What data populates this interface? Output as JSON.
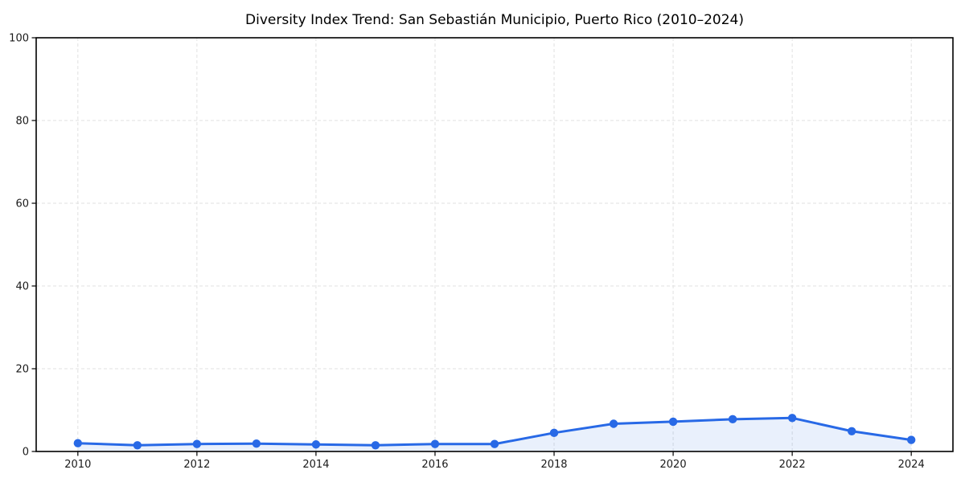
{
  "page": {
    "background": "#ffffff"
  },
  "chart_data": {
    "type": "line",
    "title": "Diversity Index Trend: San Sebastián Municipio, Puerto Rico (2010–2024)",
    "x": [
      2010,
      2011,
      2012,
      2013,
      2014,
      2015,
      2016,
      2017,
      2018,
      2019,
      2020,
      2021,
      2022,
      2023,
      2024
    ],
    "series": [
      {
        "name": "Diversity Index",
        "values": [
          2.0,
          1.5,
          1.8,
          1.9,
          1.7,
          1.5,
          1.8,
          1.8,
          4.5,
          6.7,
          7.2,
          7.8,
          8.1,
          4.9,
          2.8
        ],
        "color": "#2869e6",
        "marker": "circle",
        "fill_under": true
      }
    ],
    "xlabel": "",
    "ylabel": "",
    "xlim": [
      2009.3,
      2024.7
    ],
    "ylim": [
      0,
      100
    ],
    "xticks": [
      2010,
      2012,
      2014,
      2016,
      2018,
      2020,
      2022,
      2024
    ],
    "yticks": [
      0,
      20,
      40,
      60,
      80,
      100
    ],
    "grid": true,
    "grid_color": "#e0e0e0",
    "legend": "none",
    "spine_color": "#000000",
    "tick_color": "#000000",
    "tick_label_color": "#1a1a1a",
    "fill_opacity": 0.1,
    "line_width": 3,
    "marker_radius": 5.2
  }
}
